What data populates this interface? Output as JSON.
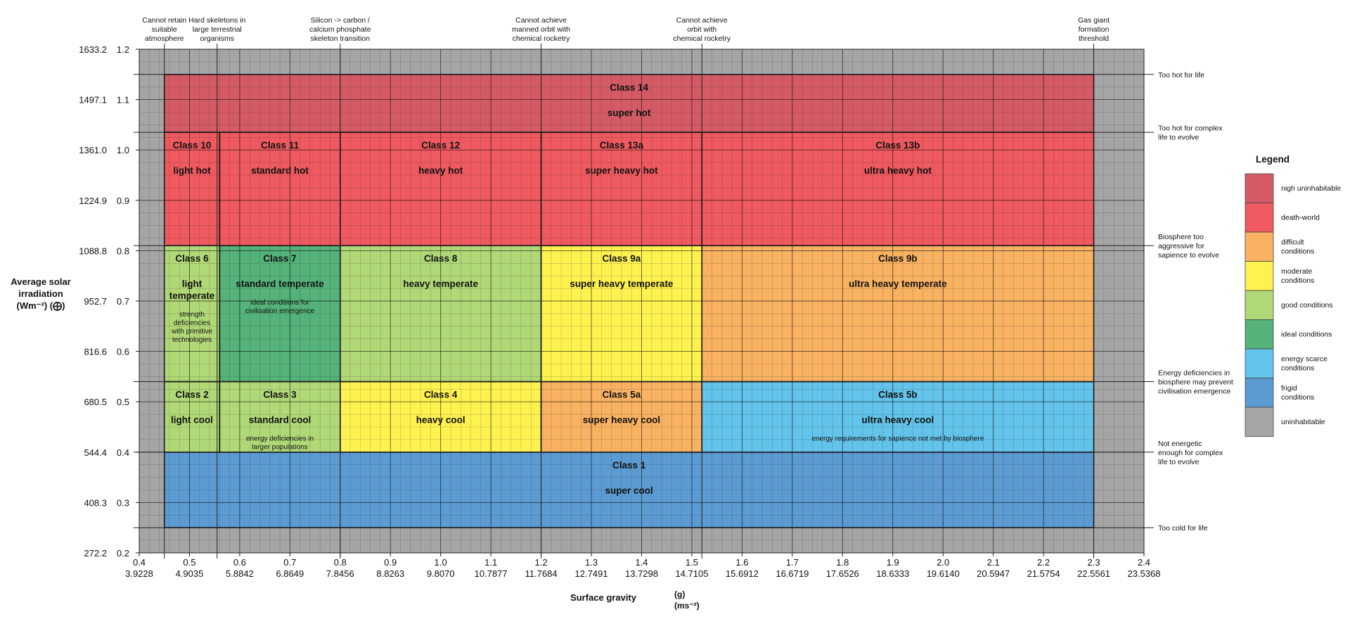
{
  "chart_data": {
    "type": "heatmap",
    "xlabel": "Surface gravity",
    "xlabel_unit_top": "(g)",
    "xlabel_unit_bottom": "(ms⁻²)",
    "ylabel_lines": [
      "Average solar",
      "irradiation",
      "(Wm⁻²)  (⨁)"
    ],
    "xlim": [
      0.4,
      2.4
    ],
    "ylim": [
      0.2,
      1.2
    ],
    "x_ticks_g": [
      "0.4",
      "0.5",
      "0.6",
      "0.7",
      "0.8",
      "0.9",
      "1.0",
      "1.1",
      "1.2",
      "1.3",
      "1.4",
      "1.5",
      "1.6",
      "1.7",
      "1.8",
      "1.9",
      "2.0",
      "2.1",
      "2.2",
      "2.3",
      "2.4"
    ],
    "x_ticks_ms2": [
      "3.9228",
      "4.9035",
      "5.8842",
      "6.8649",
      "7.8456",
      "8.8263",
      "9.8070",
      "10.7877",
      "11.7684",
      "12.7491",
      "13.7298",
      "14.7105",
      "15.6912",
      "16.6719",
      "17.6526",
      "18.6333",
      "19.6140",
      "20.5947",
      "21.5754",
      "22.5561",
      "23.5368"
    ],
    "y_ticks_rel": [
      "1.2",
      "1.1",
      "1.0",
      "0.9",
      "0.8",
      "0.7",
      "0.6",
      "0.5",
      "0.4",
      "0.3",
      "0.2"
    ],
    "y_ticks_wm2": [
      "1633.2",
      "1497.1",
      "1361.0",
      "1224.9",
      "1088.8",
      "952.7",
      "816.6",
      "680.5",
      "544.4",
      "408.3",
      "272.2"
    ],
    "top_annotations": [
      {
        "x": 0.45,
        "lines": [
          "Cannot retain",
          "suitable",
          "atmosphere"
        ]
      },
      {
        "x": 0.555,
        "lines": [
          "Hard skeletons in",
          "large terrestrial",
          "organisms"
        ]
      },
      {
        "x": 0.8,
        "lines": [
          "Silicon -> carbon /",
          "calcium  phosphate",
          "skeleton transition"
        ]
      },
      {
        "x": 1.2,
        "lines": [
          "Cannot achieve",
          "manned orbit with",
          "chemical rocketry"
        ]
      },
      {
        "x": 1.52,
        "lines": [
          "Cannot achieve",
          "orbit with",
          "chemical rocketry"
        ]
      },
      {
        "x": 2.3,
        "lines": [
          "Gas giant",
          "formation",
          "threshold"
        ]
      }
    ],
    "right_annotations": [
      {
        "y": 1.15,
        "lines": [
          "Too hot for life"
        ]
      },
      {
        "y": 1.035,
        "lines": [
          "Too hot for complex",
          "life to evolve"
        ]
      },
      {
        "y": 0.81,
        "lines": [
          "Biosphere too",
          "aggressive for",
          "sapience to evolve"
        ]
      },
      {
        "y": 0.54,
        "lines": [
          "Energy deficiencies in",
          "biosphere may prevent",
          "civilisation emergence"
        ]
      },
      {
        "y": 0.4,
        "lines": [
          "Not energetic",
          "enough for complex",
          "life to evolve"
        ]
      },
      {
        "y": 0.25,
        "lines": [
          "Too cold for life"
        ]
      }
    ],
    "regions": [
      {
        "name": "Class 14",
        "subtitle": "super hot",
        "note": [],
        "x0": 0.45,
        "x1": 2.3,
        "y0": 1.035,
        "y1": 1.15,
        "color": "#D45B66"
      },
      {
        "name": "Class 10",
        "subtitle": "light hot",
        "note": [],
        "x0": 0.45,
        "x1": 0.56,
        "y0": 0.81,
        "y1": 1.035,
        "color": "#EE5A5F"
      },
      {
        "name": "Class 11",
        "subtitle": "standard hot",
        "note": [],
        "x0": 0.56,
        "x1": 0.8,
        "y0": 0.81,
        "y1": 1.035,
        "color": "#EE5A5F"
      },
      {
        "name": "Class 12",
        "subtitle": "heavy hot",
        "note": [],
        "x0": 0.8,
        "x1": 1.2,
        "y0": 0.81,
        "y1": 1.035,
        "color": "#EE5A5F"
      },
      {
        "name": "Class 13a",
        "subtitle": "super heavy hot",
        "note": [],
        "x0": 1.2,
        "x1": 1.52,
        "y0": 0.81,
        "y1": 1.035,
        "color": "#EE5A5F"
      },
      {
        "name": "Class 13b",
        "subtitle": "ultra heavy hot",
        "note": [],
        "x0": 1.52,
        "x1": 2.3,
        "y0": 0.81,
        "y1": 1.035,
        "color": "#EE5A5F"
      },
      {
        "name": "Class 6",
        "subtitle": "light\ntemperate",
        "note": [
          "strength",
          "deficiencies",
          "with primitive",
          "technologies"
        ],
        "x0": 0.45,
        "x1": 0.56,
        "y0": 0.54,
        "y1": 0.81,
        "color": "#B1D877"
      },
      {
        "name": "Class 7",
        "subtitle": "standard temperate",
        "note": [
          "ideal conditions for",
          "civilisation emergence"
        ],
        "x0": 0.56,
        "x1": 0.8,
        "y0": 0.54,
        "y1": 0.81,
        "color": "#55B27A"
      },
      {
        "name": "Class 8",
        "subtitle": "heavy temperate",
        "note": [],
        "x0": 0.8,
        "x1": 1.2,
        "y0": 0.54,
        "y1": 0.81,
        "color": "#B1D877"
      },
      {
        "name": "Class 9a",
        "subtitle": "super heavy temperate",
        "note": [],
        "x0": 1.2,
        "x1": 1.52,
        "y0": 0.54,
        "y1": 0.81,
        "color": "#FEF250"
      },
      {
        "name": "Class 9b",
        "subtitle": "ultra heavy temperate",
        "note": [],
        "x0": 1.52,
        "x1": 2.3,
        "y0": 0.54,
        "y1": 0.81,
        "color": "#F8B262"
      },
      {
        "name": "Class 2",
        "subtitle": "light cool",
        "note": [],
        "x0": 0.45,
        "x1": 0.56,
        "y0": 0.4,
        "y1": 0.54,
        "color": "#B1D877"
      },
      {
        "name": "Class 3",
        "subtitle": "standard cool",
        "note": [
          "energy deficiencies in",
          "larger populations"
        ],
        "x0": 0.56,
        "x1": 0.8,
        "y0": 0.4,
        "y1": 0.54,
        "color": "#B1D877"
      },
      {
        "name": "Class 4",
        "subtitle": "heavy cool",
        "note": [],
        "x0": 0.8,
        "x1": 1.2,
        "y0": 0.4,
        "y1": 0.54,
        "color": "#FEF250"
      },
      {
        "name": "Class 5a",
        "subtitle": "super heavy cool",
        "note": [],
        "x0": 1.2,
        "x1": 1.52,
        "y0": 0.4,
        "y1": 0.54,
        "color": "#F8B262"
      },
      {
        "name": "Class 5b",
        "subtitle": "ultra heavy cool",
        "note": [
          "energy requirements for sapience not met by biosphere"
        ],
        "x0": 1.52,
        "x1": 2.3,
        "y0": 0.4,
        "y1": 0.54,
        "color": "#63C3EA"
      },
      {
        "name": "Class 1",
        "subtitle": "super cool",
        "note": [],
        "x0": 0.45,
        "x1": 2.3,
        "y0": 0.25,
        "y1": 0.4,
        "color": "#5C9BD2"
      }
    ],
    "legend": {
      "title": "Legend",
      "placement": "right",
      "items": [
        {
          "label": "nigh uninhabitable",
          "color": "#D45B66"
        },
        {
          "label": "death-world",
          "color": "#EE5A5F"
        },
        {
          "label": "difficult\nconditions",
          "color": "#F8B262"
        },
        {
          "label": "moderate\nconditions",
          "color": "#FEF250"
        },
        {
          "label": "good conditions",
          "color": "#B1D877"
        },
        {
          "label": "ideal conditions",
          "color": "#55B27A"
        },
        {
          "label": "energy scarce\nconditions",
          "color": "#63C3EA"
        },
        {
          "label": "frigid\nconditions",
          "color": "#5C9BD2"
        },
        {
          "label": "uninhabitable",
          "color": "#A5A5A5"
        }
      ]
    },
    "background_color": "#A5A5A5"
  }
}
